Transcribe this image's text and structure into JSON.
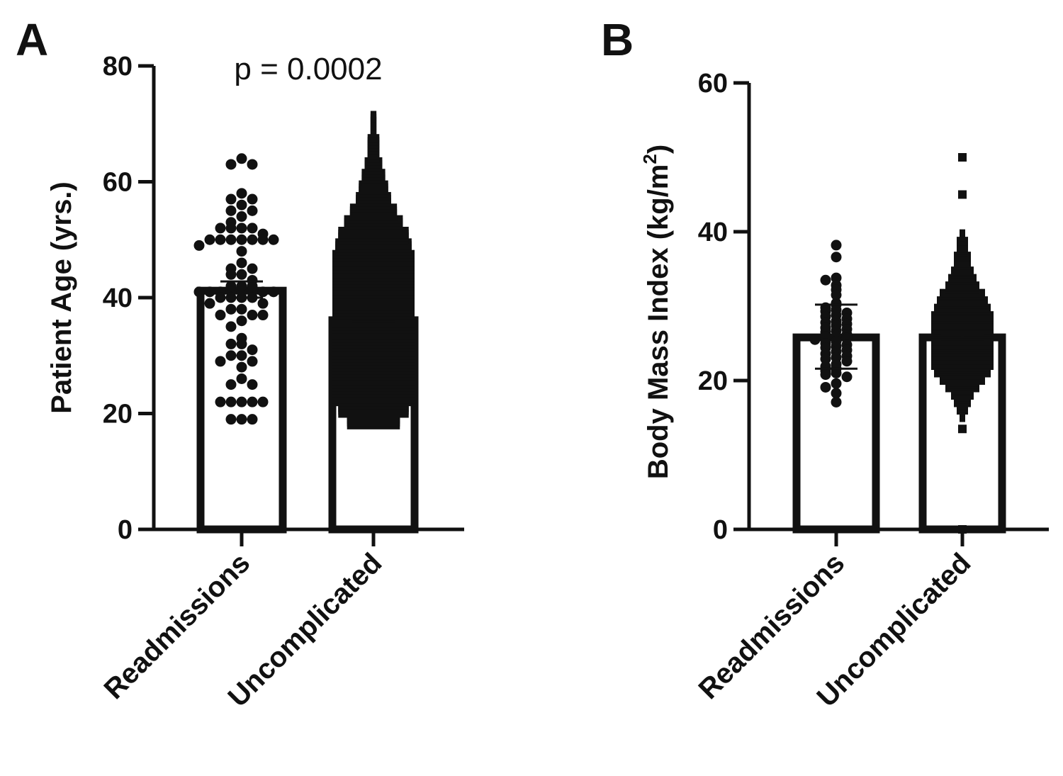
{
  "chart_data": [
    {
      "panel_label": "A",
      "type": "bar",
      "subtype": "bar with scatter (swarm) and error bars",
      "title": "",
      "annotation": "p = 0.0002",
      "ylabel": "Patient Age (yrs.)",
      "xlabel": "",
      "ylim": [
        0,
        80
      ],
      "yticks": [
        "0",
        "20",
        "40",
        "60",
        "80"
      ],
      "categories": [
        "Readmissions",
        "Uncomplicated"
      ],
      "bar_values": [
        41.2,
        36.1
      ],
      "error": [
        [
          40.0,
          42.8
        ],
        [
          35.8,
          36.4
        ]
      ],
      "marker": [
        "circle",
        "square"
      ],
      "points": {
        "Readmissions": [
          64,
          63,
          63,
          58,
          57,
          57,
          56,
          55,
          55,
          54,
          53,
          52,
          52,
          52,
          52,
          51,
          50,
          50,
          50,
          50,
          50,
          50,
          50,
          49,
          48,
          46,
          45,
          45,
          44,
          44,
          43,
          42,
          42,
          42,
          41,
          41,
          41,
          41,
          41,
          40,
          40,
          40,
          40,
          39,
          39,
          38,
          38,
          37,
          37,
          37,
          36,
          35,
          33,
          32,
          32,
          31,
          30,
          30,
          29,
          29,
          28,
          26,
          25,
          25,
          22,
          22,
          22,
          22,
          22,
          19,
          19,
          19
        ]
      },
      "distribution_bins": {
        "Uncomplicated": {
          "bin_start": 18,
          "bin_width": 2,
          "counts": [
            9,
            12,
            14,
            14,
            14,
            14,
            14,
            14,
            14,
            14,
            14,
            14,
            14,
            14,
            14,
            13,
            12,
            10,
            8,
            6,
            5,
            4,
            3,
            2,
            2,
            1,
            1
          ]
        }
      },
      "grid": false
    },
    {
      "panel_label": "B",
      "type": "bar",
      "subtype": "bar with scatter (swarm) and error bars",
      "title": "",
      "ylabel": "Body Mass Index (kg/m",
      "ylabel_superscript": "2",
      "ylabel_close": ")",
      "xlabel": "",
      "ylim": [
        0,
        60
      ],
      "yticks": [
        "0",
        "20",
        "40",
        "60"
      ],
      "categories": [
        "Readmissions",
        "Uncomplicated"
      ],
      "bar_values": [
        25.8,
        25.8
      ],
      "error": [
        [
          21.6,
          30.2
        ],
        [
          25.5,
          26.1
        ]
      ],
      "marker": [
        "circle",
        "square"
      ],
      "points": {
        "Readmissions": [
          38.2,
          36.6,
          33.8,
          33.5,
          32.8,
          32.2,
          31.5,
          30.4,
          30.2,
          29.8,
          29.5,
          29.3,
          29.1,
          28.8,
          28.6,
          28.3,
          28.0,
          27.8,
          27.6,
          27.4,
          27.1,
          26.9,
          26.7,
          26.5,
          26.2,
          26.0,
          25.9,
          25.7,
          25.5,
          25.3,
          25.0,
          24.8,
          24.6,
          24.4,
          24.1,
          23.9,
          23.6,
          23.3,
          23.1,
          22.9,
          22.6,
          22.2,
          21.9,
          21.6,
          21.3,
          21.0,
          20.8,
          20.5,
          19.6,
          19.1,
          18.3,
          17.1
        ],
        "Uncomplicated_outliers": [
          50,
          45,
          13.5,
          0
        ]
      },
      "distribution_bins": {
        "Uncomplicated": {
          "bin_start": 15,
          "bin_width": 1,
          "counts": [
            1,
            2,
            3,
            4,
            6,
            8,
            10,
            11,
            11,
            11,
            11,
            11,
            11,
            11,
            10,
            9,
            8,
            6,
            5,
            4,
            3,
            3,
            2,
            2,
            1
          ]
        }
      },
      "grid": false
    }
  ]
}
